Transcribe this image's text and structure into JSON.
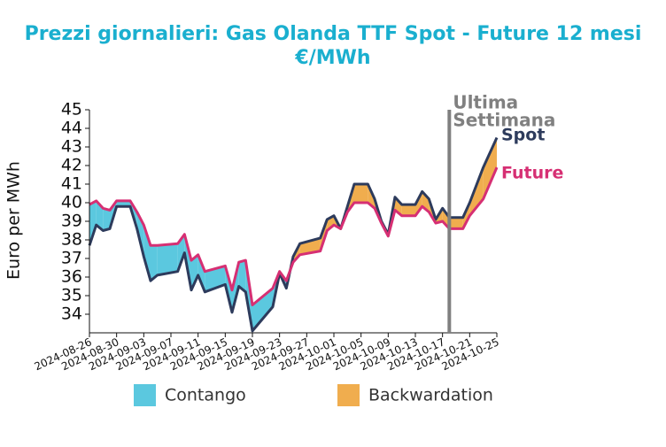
{
  "chart_data": {
    "type": "line",
    "title": [
      "Prezzi giornalieri: Gas Olanda TTF Spot - Future 12 mesi",
      "€/MWh"
    ],
    "title_color": "#1aafcf",
    "y_label": "Euro per MWh",
    "x": [
      "2024-08-26",
      "2024-08-27",
      "2024-08-28",
      "2024-08-29",
      "2024-08-30",
      "2024-09-01",
      "2024-09-02",
      "2024-09-03",
      "2024-09-04",
      "2024-09-05",
      "2024-09-08",
      "2024-09-09",
      "2024-09-10",
      "2024-09-11",
      "2024-09-12",
      "2024-09-15",
      "2024-09-16",
      "2024-09-17",
      "2024-09-18",
      "2024-09-19",
      "2024-09-22",
      "2024-09-23",
      "2024-09-24",
      "2024-09-25",
      "2024-09-26",
      "2024-09-29",
      "2024-09-30",
      "2024-10-01",
      "2024-10-02",
      "2024-10-03",
      "2024-10-04",
      "2024-10-06",
      "2024-10-07",
      "2024-10-08",
      "2024-10-09",
      "2024-10-10",
      "2024-10-11",
      "2024-10-13",
      "2024-10-14",
      "2024-10-15",
      "2024-10-16",
      "2024-10-17",
      "2024-10-18",
      "2024-10-20",
      "2024-10-21",
      "2024-10-23",
      "2024-10-25"
    ],
    "series": [
      {
        "name": "Spot",
        "color": "#2d3b5c",
        "values": [
          37.7,
          38.8,
          38.5,
          38.6,
          39.8,
          39.8,
          38.6,
          37.1,
          35.8,
          36.1,
          36.3,
          37.3,
          35.3,
          36.1,
          35.2,
          35.6,
          34.1,
          35.5,
          35.2,
          33.1,
          34.4,
          36.2,
          35.4,
          37.1,
          37.8,
          38.1,
          39.1,
          39.3,
          38.6,
          39.8,
          41.0,
          41.0,
          40.2,
          39.0,
          38.3,
          40.3,
          39.9,
          39.9,
          40.6,
          40.2,
          39.1,
          39.7,
          39.2,
          39.2,
          40.0,
          41.9,
          43.5
        ]
      },
      {
        "name": "Future",
        "color": "#d62f73",
        "values": [
          39.9,
          40.1,
          39.7,
          39.6,
          40.1,
          40.1,
          39.5,
          38.8,
          37.7,
          37.7,
          37.8,
          38.3,
          36.9,
          37.2,
          36.3,
          36.6,
          35.3,
          36.8,
          36.9,
          34.5,
          35.4,
          36.3,
          35.8,
          36.8,
          37.2,
          37.4,
          38.5,
          38.8,
          38.6,
          39.5,
          40.0,
          40.0,
          39.7,
          38.9,
          38.2,
          39.6,
          39.3,
          39.3,
          39.8,
          39.5,
          38.9,
          39.0,
          38.6,
          38.6,
          39.3,
          40.2,
          41.9
        ]
      }
    ],
    "fills": [
      {
        "name": "Contango",
        "color": "#5bc8df"
      },
      {
        "name": "Backwardation",
        "color": "#f0ad4e"
      }
    ],
    "annotation": {
      "text": [
        "Ultima",
        "Settimana"
      ],
      "x": "2024-10-18",
      "color": "#808080"
    },
    "xlim": [
      "2024-08-26",
      "2024-10-25"
    ],
    "xticks": [
      "2024-08-26",
      "2024-08-30",
      "2024-09-03",
      "2024-09-07",
      "2024-09-11",
      "2024-09-15",
      "2024-09-19",
      "2024-09-23",
      "2024-09-27",
      "2024-10-01",
      "2024-10-05",
      "2024-10-09",
      "2024-10-13",
      "2024-10-17",
      "2024-10-21",
      "2024-10-25"
    ],
    "ylim": [
      33,
      45
    ],
    "yticks": [
      34,
      35,
      36,
      37,
      38,
      39,
      40,
      41,
      42,
      43,
      44,
      45
    ]
  }
}
